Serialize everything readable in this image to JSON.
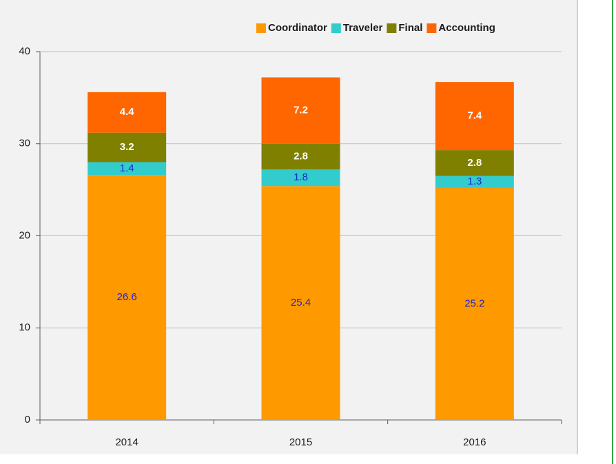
{
  "chart_data": {
    "type": "stacked_bar",
    "categories": [
      "2014",
      "2015",
      "2016"
    ],
    "series": [
      {
        "name": "Coordinator",
        "color": "#ff9900",
        "label_color": "#1f1fd6",
        "label_bold": false,
        "values": [
          26.6,
          25.4,
          25.2
        ]
      },
      {
        "name": "Traveler",
        "color": "#33cccc",
        "label_color": "#1f1fd6",
        "label_bold": false,
        "values": [
          1.4,
          1.8,
          1.3
        ]
      },
      {
        "name": "Final",
        "color": "#808000",
        "label_color": "#ffffff",
        "label_bold": true,
        "values": [
          3.2,
          2.8,
          2.8
        ]
      },
      {
        "name": "Accounting",
        "color": "#ff6600",
        "label_color": "#ffffff",
        "label_bold": true,
        "values": [
          4.4,
          7.2,
          7.4
        ]
      }
    ],
    "ylim": [
      0,
      40
    ],
    "yticks": [
      0,
      10,
      20,
      30,
      40
    ],
    "grid": true,
    "legend": "top-right"
  }
}
